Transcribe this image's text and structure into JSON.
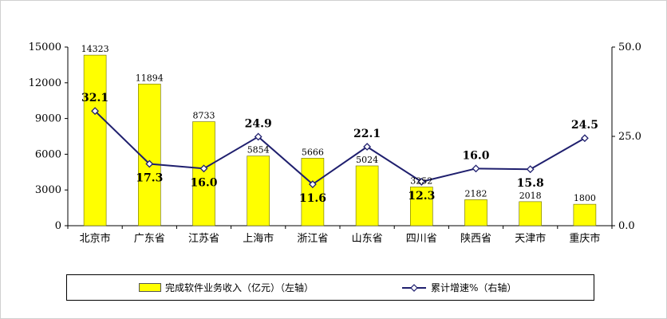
{
  "chart_data": {
    "type": "bar",
    "title": "",
    "xlabel": "",
    "ylabel": "",
    "categories": [
      "北京市",
      "广东省",
      "江苏省",
      "上海市",
      "浙江省",
      "山东省",
      "四川省",
      "陕西省",
      "天津市",
      "重庆市"
    ],
    "y_left": {
      "ylim": [
        0,
        15000
      ],
      "ticks": [
        "0",
        "3000",
        "6000",
        "9000",
        "12000",
        "15000"
      ]
    },
    "y_right": {
      "ylim": [
        0,
        50
      ],
      "ticks": [
        "0.0",
        "25.0",
        "50.0"
      ]
    },
    "series": [
      {
        "name": "完成软件业务收入（亿元）（左轴）",
        "type": "bar",
        "axis": "left",
        "color": "#ffff00",
        "values": [
          14323,
          11894,
          8733,
          5854,
          5666,
          5024,
          3252,
          2182,
          2018,
          1800
        ],
        "labels": [
          "14323",
          "11894",
          "8733",
          "5854",
          "5666",
          "5024",
          "3252",
          "2182",
          "2018",
          "1800"
        ]
      },
      {
        "name": "累计增速%（右轴）",
        "type": "line",
        "axis": "right",
        "color": "#1f1f6e",
        "values": [
          32.1,
          17.3,
          16.0,
          24.9,
          11.6,
          22.1,
          12.3,
          16.0,
          15.8,
          24.5
        ],
        "labels": [
          "32.1",
          "17.3",
          "16.0",
          "24.9",
          "11.6",
          "22.1",
          "12.3",
          "16.0",
          "15.8",
          "24.5"
        ]
      }
    ],
    "grid": false,
    "legend": "bottom"
  }
}
